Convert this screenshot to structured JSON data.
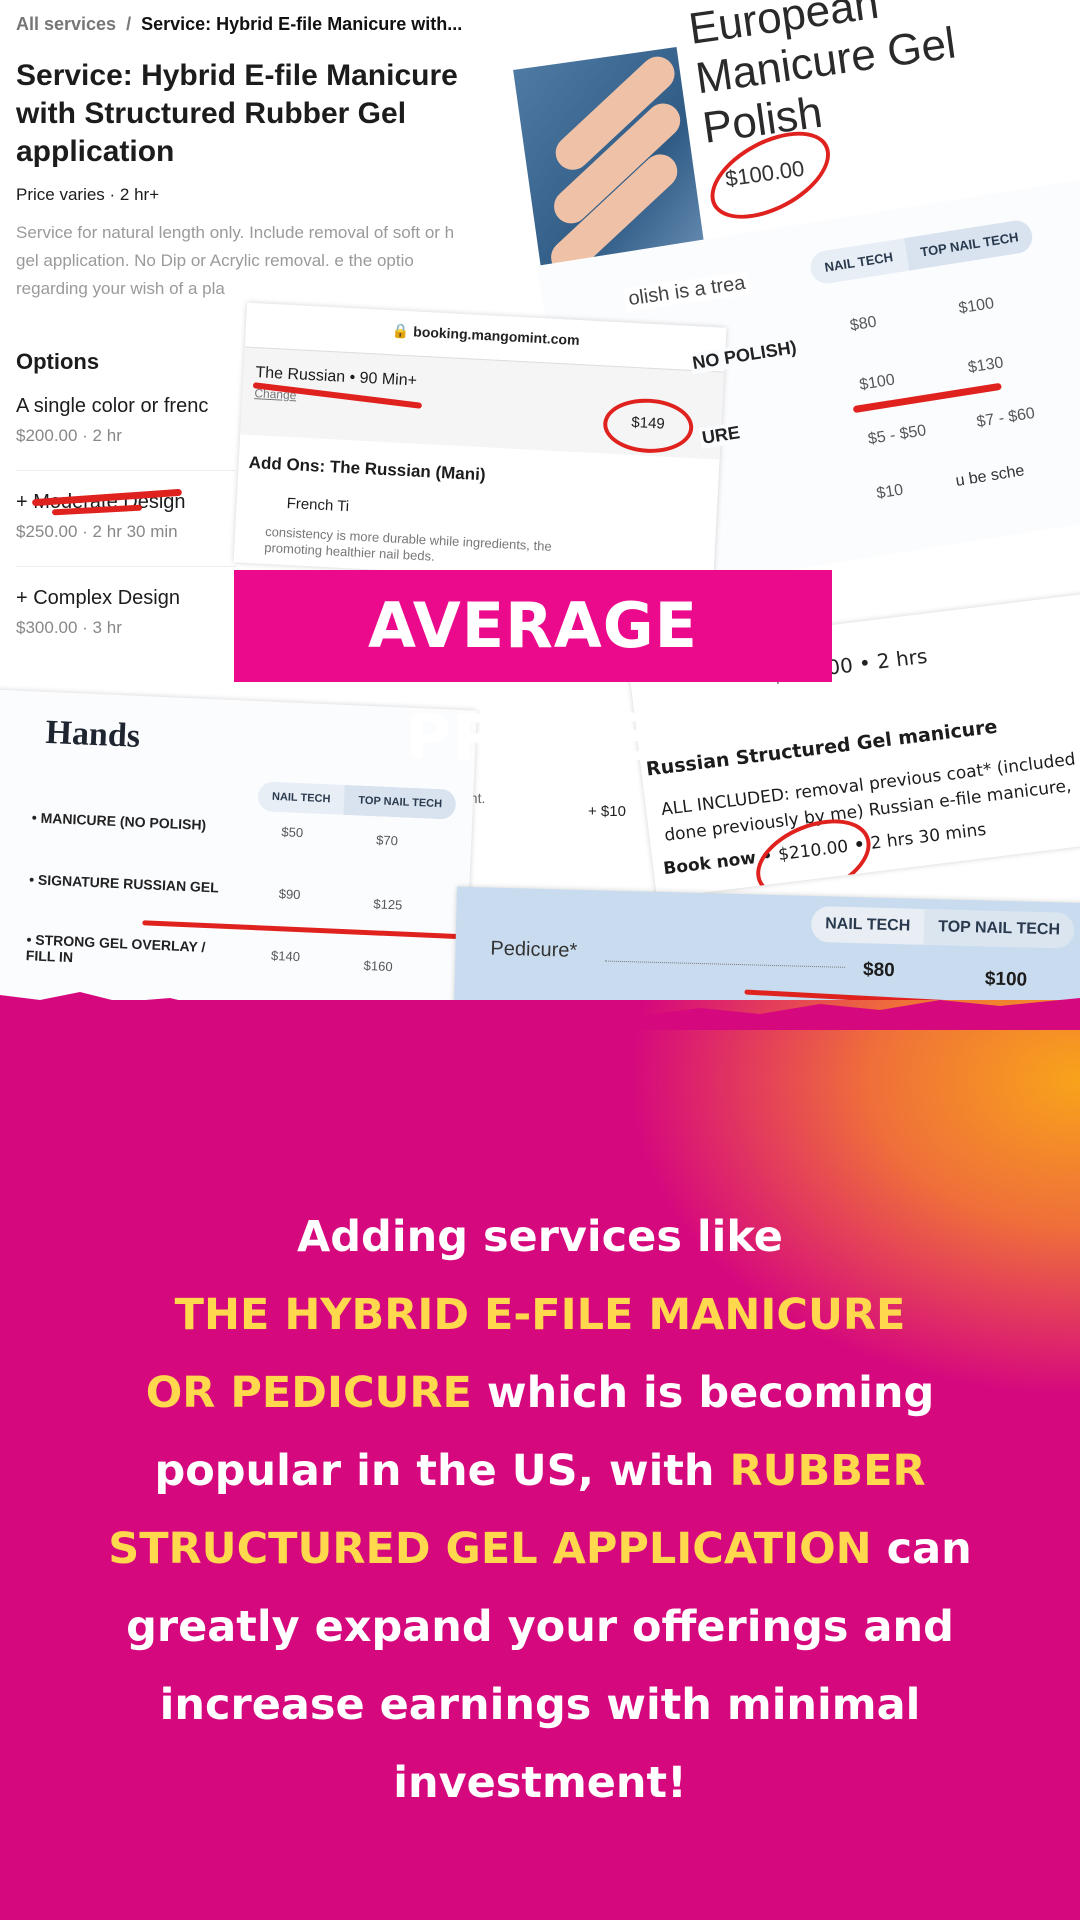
{
  "service_panel": {
    "breadcrumb_root": "All services",
    "breadcrumb_sep": "/",
    "breadcrumb_current": "Service: Hybrid E-file Manicure with...",
    "title": "Service: Hybrid E-file Manicure with Structured Rubber Gel application",
    "meta": "Price varies  ·  2 hr+",
    "description": [
      "Service for natural length only. Include removal of soft or h",
      "gel application. No Dip or Acrylic removal.      e the optio",
      "regarding your wish of a pla"
    ],
    "options_heading": "Options",
    "options": [
      {
        "name": "A single color or frenc",
        "price": "$200.00 · 2 hr"
      },
      {
        "name": "+ Moderate Design",
        "price": "$250.00 · 2 hr 30 min"
      },
      {
        "name": "+ Complex Design",
        "price": "$300.00 · 3 hr"
      }
    ]
  },
  "european_card": {
    "title": "European Manicure Gel Polish",
    "price": "$100.00",
    "snippet": "olish is a trea"
  },
  "price_table": {
    "headers": [
      "NAIL TECH",
      "TOP NAIL TECH"
    ],
    "rows": [
      {
        "name": "NO POLISH)",
        "nail_tech": "$80",
        "top_nail_tech": "$100"
      },
      {
        "name": "URE",
        "nail_tech": "$100",
        "top_nail_tech": "$130"
      },
      {
        "name": "",
        "nail_tech": "$5 - $50",
        "top_nail_tech": "$7 - $60"
      },
      {
        "name": "",
        "nail_tech": "$10",
        "top_nail_tech": ""
      }
    ],
    "fragment": "u be sche"
  },
  "booking": {
    "url": "booking.mangomint.com",
    "service": "The Russian • 90 Min+",
    "change": "Change",
    "price": "$149",
    "addons": "Add Ons: The Russian (Mani)",
    "addon_item": "French Ti",
    "desc": [
      "consistency is more durable while ingredients, the",
      "promoting healthier nail beds."
    ],
    "extra": "+ $10",
    "cent": "cent."
  },
  "banner": {
    "text": "AVERAGE PRICES",
    "color": "#EC0A8C"
  },
  "russian_card": {
    "top_price": "$280.00  •  2 hrs",
    "title": "Russian Structured Gel manicure",
    "desc": [
      "ALL INCLUDED: removal previous coat* (included",
      "done previously by me) Russian e-file manicure,"
    ],
    "book": "Book now",
    "price": "$210.00",
    "duration": "2 hrs 30 mins"
  },
  "hands_card": {
    "title": "Hands",
    "headers": [
      "NAIL TECH",
      "TOP NAIL TECH"
    ],
    "rows": [
      {
        "name": "MANICURE (NO POLISH)",
        "nail_tech": "$50",
        "top_nail_tech": "$70"
      },
      {
        "name": "SIGNATURE RUSSIAN GEL",
        "nail_tech": "$90",
        "top_nail_tech": "$125"
      },
      {
        "name": "STRONG GEL OVERLAY / FILL IN",
        "nail_tech": "$140",
        "top_nail_tech": "$160"
      }
    ]
  },
  "pedicure_card": {
    "headers": [
      "NAIL TECH",
      "TOP NAIL TECH"
    ],
    "name": "Pedicure*",
    "nail_tech": "$80",
    "top_nail_tech": "$100"
  },
  "message": {
    "lines": [
      [
        {
          "t": "Adding services like",
          "hl": false
        }
      ],
      [
        {
          "t": "THE HYBRID E-FILE MANICURE",
          "hl": true
        }
      ],
      [
        {
          "t": "OR PEDICURE",
          "hl": true
        },
        {
          "t": " which is becoming",
          "hl": false
        }
      ],
      [
        {
          "t": "popular in the US, with ",
          "hl": false
        },
        {
          "t": "RUBBER",
          "hl": true
        }
      ],
      [
        {
          "t": "STRUCTURED GEL APPLICATION",
          "hl": true
        },
        {
          "t": " can",
          "hl": false
        }
      ],
      [
        {
          "t": "greatly expand your offerings and",
          "hl": false
        }
      ],
      [
        {
          "t": "increase earnings with minimal",
          "hl": false
        }
      ],
      [
        {
          "t": "investment!",
          "hl": false
        }
      ]
    ],
    "highlight_color": "#FFD84D"
  },
  "colors": {
    "accent_red": "#E0221F",
    "magenta": "#D6087E",
    "orange": "#F8A31B"
  }
}
